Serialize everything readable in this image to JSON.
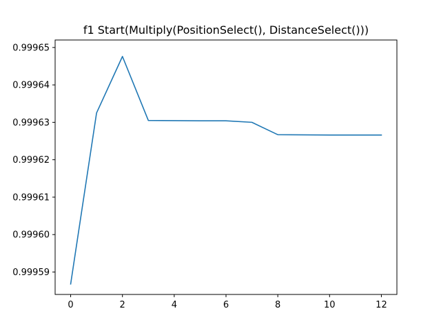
{
  "chart_data": {
    "type": "line",
    "title": "f1 Start(Multiply(PositionSelect(), DistanceSelect()))",
    "xlabel": "",
    "ylabel": "",
    "xlim": [
      -0.6,
      12.6
    ],
    "ylim": [
      0.999584,
      0.999652
    ],
    "x_ticks": [
      0,
      2,
      4,
      6,
      8,
      10,
      12
    ],
    "y_ticks": [
      0.99959,
      0.9996,
      0.99961,
      0.99962,
      0.99963,
      0.99964,
      0.99965
    ],
    "y_tick_labels": [
      "0.99959",
      "0.99960",
      "0.99961",
      "0.99962",
      "0.99963",
      "0.99964",
      "0.99965"
    ],
    "grid": false,
    "series": [
      {
        "color": "#1f77b4",
        "x": [
          0,
          1,
          2,
          3,
          4,
          5,
          6,
          7,
          8,
          9,
          10,
          11,
          12
        ],
        "y": [
          0.9995868,
          0.9996325,
          0.9996476,
          0.9996305,
          0.99963045,
          0.9996304,
          0.9996304,
          0.99963,
          0.9996267,
          0.99962665,
          0.9996266,
          0.9996266,
          0.9996266
        ]
      }
    ]
  }
}
